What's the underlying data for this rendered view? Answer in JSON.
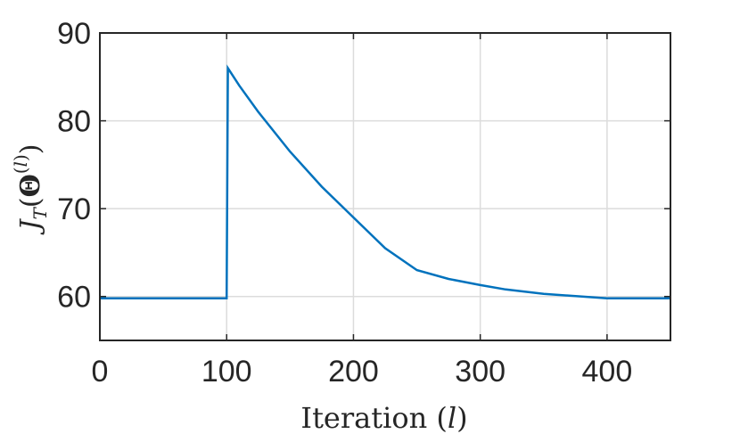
{
  "chart_data": {
    "type": "line",
    "title": "",
    "xlabel": "Iteration (l)",
    "ylabel": "J_T(Θ^(l))",
    "xlim": [
      0,
      450
    ],
    "ylim": [
      55,
      90
    ],
    "x_ticks": [
      0,
      100,
      200,
      300,
      400
    ],
    "y_ticks": [
      60,
      70,
      80,
      90
    ],
    "grid": true,
    "line_color": "#0072BD",
    "series": [
      {
        "x": [
          0,
          100,
          101,
          110,
          125,
          150,
          175,
          200,
          225,
          250,
          275,
          300,
          320,
          350,
          400,
          450
        ],
        "values": [
          59.8,
          59.8,
          86.0,
          84.0,
          81.0,
          76.5,
          72.5,
          69.0,
          65.5,
          63.0,
          62.0,
          61.3,
          60.8,
          60.3,
          59.8,
          59.8
        ]
      }
    ]
  }
}
